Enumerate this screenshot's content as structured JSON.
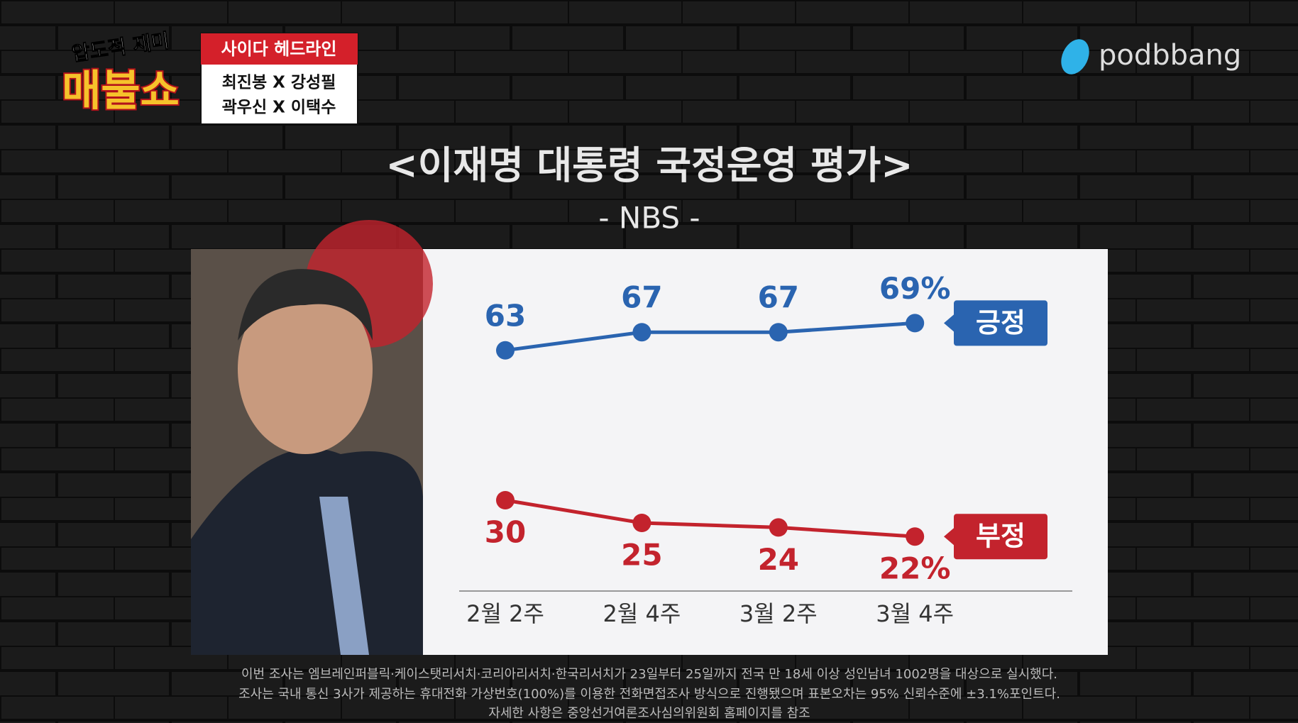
{
  "show": {
    "tagline": "압도적 재미",
    "name": "매불쇼"
  },
  "headline": {
    "label": "사이다 헤드라인",
    "panel": [
      "최진봉 X 강성필",
      "곽우신 X 이택수"
    ]
  },
  "brand": "podbbang",
  "chart_data": {
    "type": "line",
    "title": "<이재명 대통령 국정운영 평가>",
    "subtitle": "- NBS -",
    "categories": [
      "2월 2주",
      "2월 4주",
      "3월 2주",
      "3월 4주"
    ],
    "series": [
      {
        "name": "긍정",
        "color": "#2a64b0",
        "values": [
          63,
          67,
          67,
          69
        ],
        "value_labels": [
          "63",
          "67",
          "67",
          "69%"
        ]
      },
      {
        "name": "부정",
        "color": "#c3232d",
        "values": [
          30,
          25,
          24,
          22
        ],
        "value_labels": [
          "30",
          "25",
          "24",
          "22%"
        ]
      }
    ],
    "ylim": [
      10,
      80
    ]
  },
  "footnote": [
    "이번 조사는 엠브레인퍼블릭·케이스탯리서치·코리아리서치·한국리서치가 23일부터 25일까지 전국 만 18세 이상 성인남녀 1002명을 대상으로 실시했다.",
    "조사는 국내 통신 3사가 제공하는 휴대전화 가상번호(100%)를 이용한 전화면접조사 방식으로 진행됐으며 표본오차는 95% 신뢰수준에 ±3.1%포인트다.",
    "자세한 사항은 중앙선거여론조사심의위원회 홈페이지를 참조"
  ]
}
